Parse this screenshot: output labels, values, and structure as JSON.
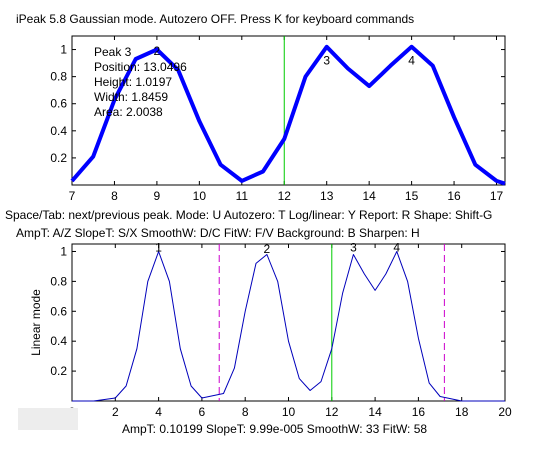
{
  "header": {
    "title": "iPeak 5.8  Gaussian mode.       Autozero OFF.    Press K for keyboard commands"
  },
  "help": {
    "line1": "Space/Tab: next/previous peak.  Mode: U  Autozero: T   Log/linear: Y   Report: R   Shape: Shift-G",
    "line2": "AmpT: A/Z   SlopeT: S/X   SmoothW: D/C    FitW: F/V    Background: B    Sharpen: H"
  },
  "status": {
    "text": "AmpT: 0.10199       SlopeT: 9.99e-005      SmoothW: 33       FitW: 58"
  },
  "colors": {
    "signal_top": "#0000ff",
    "fit_top": "#ff0000",
    "cursor": "#00cc00",
    "window_marker": "#cc00cc",
    "signal_bottom": "#0000bb"
  },
  "chart_data": [
    {
      "type": "line",
      "name": "top-panel",
      "xlim": [
        7,
        17.2
      ],
      "ylim": [
        0,
        1.1
      ],
      "xticks": [
        7,
        8,
        9,
        10,
        11,
        12,
        13,
        14,
        15,
        16,
        17
      ],
      "yticks": [
        0.2,
        0.4,
        0.6,
        0.8,
        1
      ],
      "ytick_labels": [
        "0.2",
        "0.4",
        "0.6",
        "0.8",
        "1"
      ],
      "x": [
        7,
        7.5,
        8,
        8.5,
        9,
        9.5,
        10,
        10.5,
        11,
        11.5,
        12,
        12.5,
        13,
        13.5,
        14,
        14.5,
        15,
        15.5,
        16,
        16.5,
        17,
        17.2
      ],
      "y": [
        0.03,
        0.21,
        0.63,
        0.93,
        1.0,
        0.85,
        0.47,
        0.15,
        0.03,
        0.1,
        0.34,
        0.8,
        1.02,
        0.86,
        0.73,
        0.88,
        1.02,
        0.88,
        0.5,
        0.15,
        0.03,
        0.01
      ],
      "cursor_x": 12,
      "peak_labels": [
        {
          "x": 9,
          "y": 0.96,
          "text": "2"
        },
        {
          "x": 13,
          "y": 0.89,
          "text": "3"
        },
        {
          "x": 15,
          "y": 0.89,
          "text": "4"
        }
      ],
      "info": {
        "peak": "Peak 3",
        "position": "Position: 13.0496",
        "height": "Height: 1.0197",
        "width": "Width: 1.8459",
        "area": "Area: 2.0038"
      }
    },
    {
      "type": "line",
      "name": "bottom-panel",
      "ylabel": "Linear mode",
      "xlim": [
        0,
        20
      ],
      "ylim": [
        0,
        1.05
      ],
      "xticks": [
        0,
        2,
        4,
        6,
        8,
        10,
        12,
        14,
        16,
        18,
        20
      ],
      "yticks": [
        0.2,
        0.4,
        0.6,
        0.8,
        1
      ],
      "ytick_labels": [
        "0.2",
        "0.4",
        "0.6",
        "0.8",
        "1"
      ],
      "x": [
        0,
        1,
        2,
        2.5,
        3,
        3.5,
        4,
        4.5,
        5,
        5.5,
        6,
        7,
        7.5,
        8,
        8.5,
        9,
        9.5,
        10,
        10.5,
        11,
        11.5,
        12,
        12.5,
        13,
        13.5,
        14,
        14.5,
        15,
        15.5,
        16,
        16.5,
        17,
        18,
        19,
        20
      ],
      "y": [
        0,
        0,
        0.02,
        0.1,
        0.35,
        0.8,
        1.0,
        0.8,
        0.35,
        0.1,
        0.02,
        0.05,
        0.22,
        0.6,
        0.92,
        0.98,
        0.8,
        0.4,
        0.15,
        0.07,
        0.13,
        0.35,
        0.72,
        0.98,
        0.85,
        0.74,
        0.85,
        1.0,
        0.8,
        0.42,
        0.12,
        0.03,
        0,
        0,
        0
      ],
      "cursor_x": 12,
      "window_markers": [
        6.8,
        17.2
      ],
      "peak_labels": [
        {
          "x": 4,
          "y": 1.0,
          "text": "1"
        },
        {
          "x": 9,
          "y": 0.99,
          "text": "2"
        },
        {
          "x": 13,
          "y": 1.0,
          "text": "3"
        },
        {
          "x": 15,
          "y": 1.0,
          "text": "4"
        }
      ]
    }
  ]
}
